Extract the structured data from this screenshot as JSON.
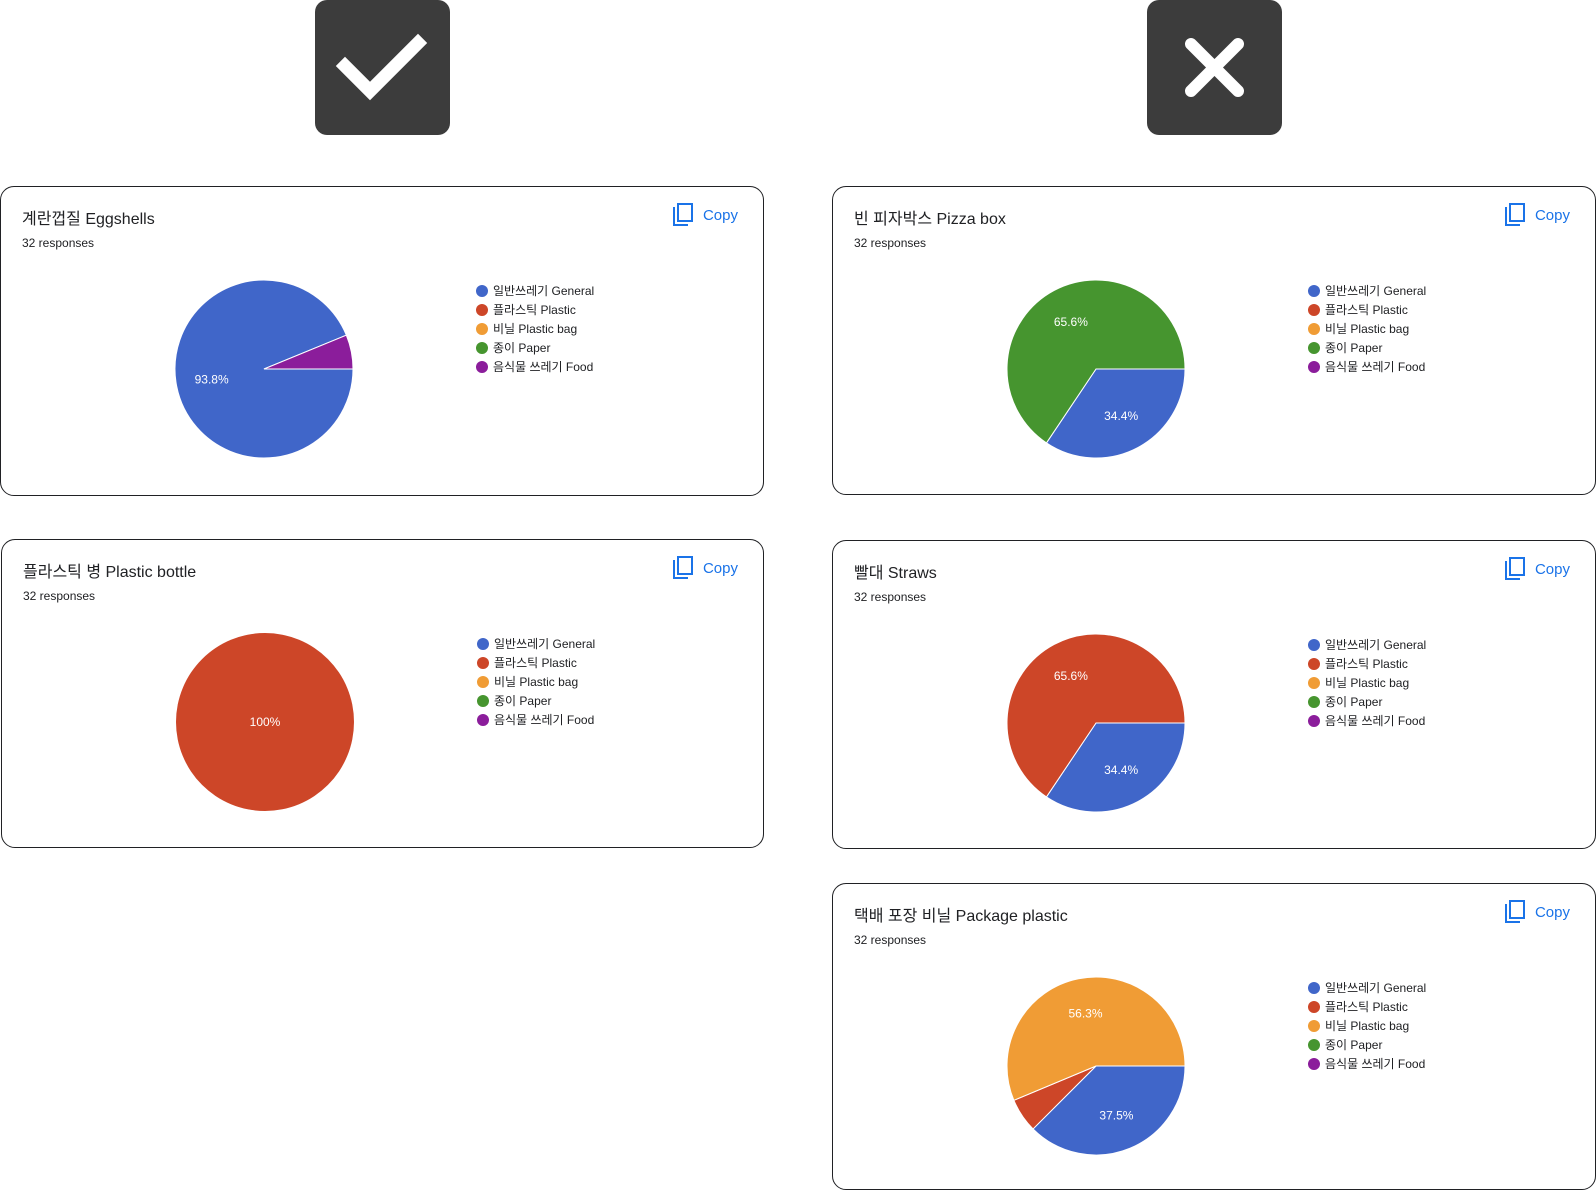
{
  "badges": {
    "good": "check-icon",
    "bad": "close-icon"
  },
  "copy_label": "Copy",
  "legend": [
    {
      "label": "일반쓰레기 General",
      "color": "#4066c9"
    },
    {
      "label": "플라스틱 Plastic",
      "color": "#cd4628"
    },
    {
      "label": "비닐 Plastic bag",
      "color": "#f09c35"
    },
    {
      "label": "종이 Paper",
      "color": "#46952f"
    },
    {
      "label": "음식물 쓰레기 Food",
      "color": "#8b1d9b"
    }
  ],
  "chart_data": [
    {
      "type": "pie",
      "title": "계란껍질 Eggshells",
      "subtitle": "32 responses",
      "categories": [
        "일반쓰레기 General",
        "플라스틱 Plastic",
        "비닐 Plastic bag",
        "종이 Paper",
        "음식물 쓰레기 Food"
      ],
      "values": [
        93.8,
        0,
        0,
        0,
        6.2
      ],
      "data_labels": [
        "93.8%",
        "",
        "",
        "",
        ""
      ],
      "legend_position": "right"
    },
    {
      "type": "pie",
      "title": "플라스틱 병 Plastic bottle",
      "subtitle": "32 responses",
      "categories": [
        "일반쓰레기 General",
        "플라스틱 Plastic",
        "비닐 Plastic bag",
        "종이 Paper",
        "음식물 쓰레기 Food"
      ],
      "values": [
        0,
        100,
        0,
        0,
        0
      ],
      "data_labels": [
        "",
        "100%",
        "",
        "",
        ""
      ],
      "legend_position": "right"
    },
    {
      "type": "pie",
      "title": "빈 피자박스 Pizza box",
      "subtitle": "32 responses",
      "categories": [
        "일반쓰레기 General",
        "플라스틱 Plastic",
        "비닐 Plastic bag",
        "종이 Paper",
        "음식물 쓰레기 Food"
      ],
      "values": [
        34.4,
        0,
        0,
        65.6,
        0
      ],
      "data_labels": [
        "34.4%",
        "",
        "",
        "65.6%",
        ""
      ],
      "legend_position": "right"
    },
    {
      "type": "pie",
      "title": "빨대 Straws",
      "subtitle": "32 responses",
      "categories": [
        "일반쓰레기 General",
        "플라스틱 Plastic",
        "비닐 Plastic bag",
        "종이 Paper",
        "음식물 쓰레기 Food"
      ],
      "values": [
        34.4,
        65.6,
        0,
        0,
        0
      ],
      "data_labels": [
        "34.4%",
        "65.6%",
        "",
        "",
        ""
      ],
      "legend_position": "right"
    },
    {
      "type": "pie",
      "title": "택배 포장 비닐 Package plastic",
      "subtitle": "32 responses",
      "categories": [
        "일반쓰레기 General",
        "플라스틱 Plastic",
        "비닐 Plastic bag",
        "종이 Paper",
        "음식물 쓰레기 Food"
      ],
      "values": [
        37.5,
        6.2,
        56.3,
        0,
        0
      ],
      "data_labels": [
        "37.5%",
        "",
        "56.3%",
        "",
        ""
      ],
      "legend_position": "right"
    }
  ]
}
